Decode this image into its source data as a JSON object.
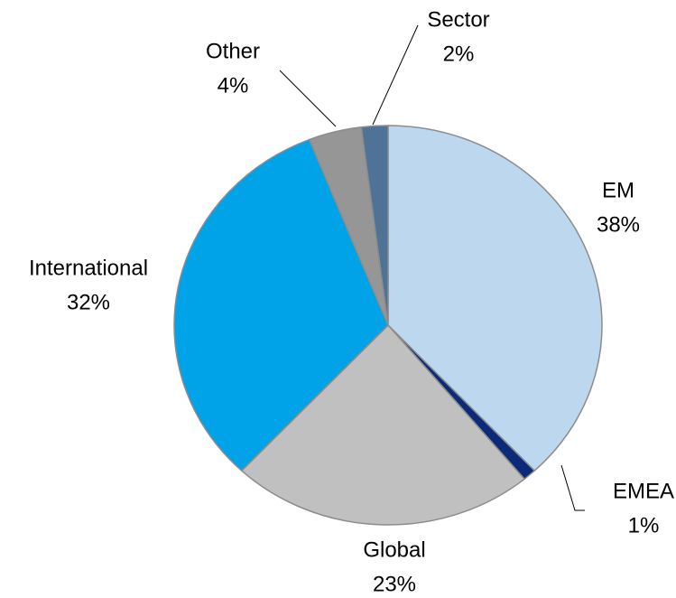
{
  "chart_data": {
    "type": "pie",
    "categories": [
      "EM",
      "EMEA",
      "Global",
      "International",
      "Other",
      "Sector"
    ],
    "values": [
      38,
      1,
      23,
      32,
      4,
      2
    ],
    "value_labels": [
      "38%",
      "1%",
      "23%",
      "32%",
      "4%",
      "2%"
    ],
    "colors": [
      "#bdd7ee",
      "#0b2a7a",
      "#c0c0c0",
      "#00a2e8",
      "#969696",
      "#4f7396"
    ]
  }
}
